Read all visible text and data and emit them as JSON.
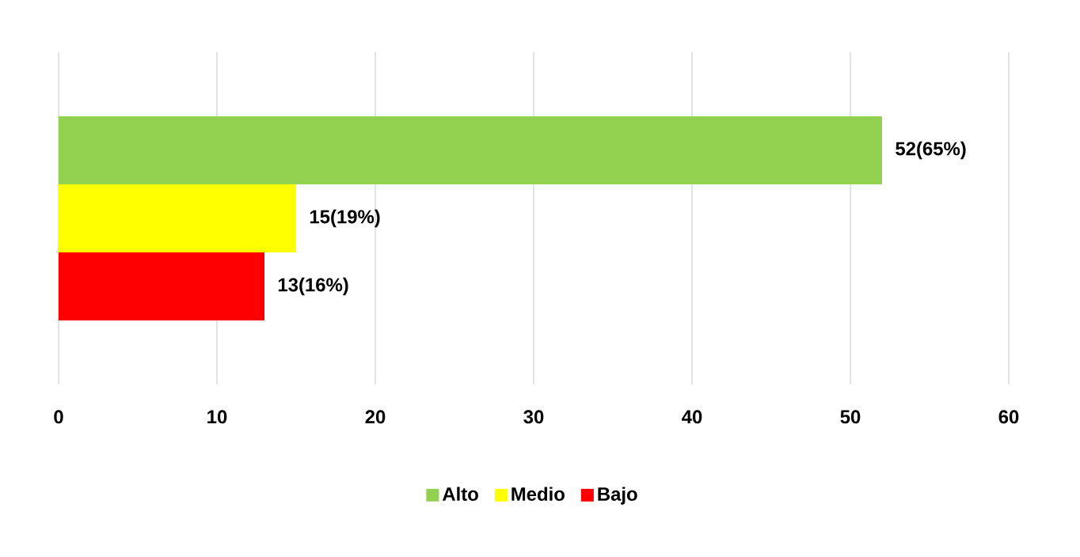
{
  "chart_data": {
    "type": "bar",
    "orientation": "horizontal",
    "categories": [
      null
    ],
    "series": [
      {
        "name": "Alto",
        "color": "#92d050",
        "values": [
          52
        ],
        "value_labels": [
          "52(65%)"
        ]
      },
      {
        "name": "Medio",
        "color": "#ffff00",
        "values": [
          15
        ],
        "value_labels": [
          "15(19%)"
        ]
      },
      {
        "name": "Bajo",
        "color": "#ff0000",
        "values": [
          13
        ],
        "value_labels": [
          "13(16%)"
        ]
      }
    ],
    "xlim": [
      0,
      60
    ],
    "xticks": [
      0,
      10,
      20,
      30,
      40,
      50,
      60
    ],
    "grid": "x",
    "legend": "bottom"
  }
}
